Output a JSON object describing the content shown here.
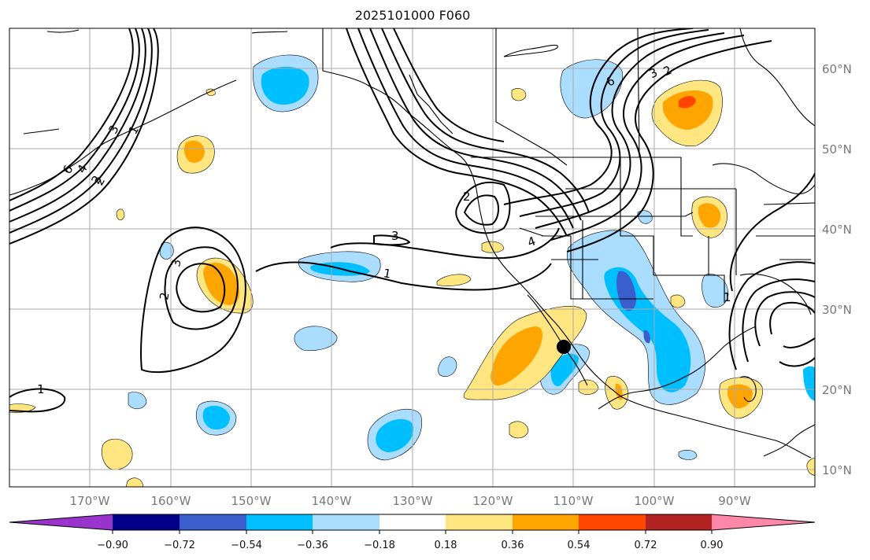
{
  "title": "2025101000 F060",
  "lat_labels": [
    "60°N",
    "50°N",
    "40°N",
    "30°N",
    "20°N",
    "10°N"
  ],
  "lon_labels": [
    "170°W",
    "160°W",
    "150°W",
    "140°W",
    "130°W",
    "120°W",
    "110°W",
    "100°W",
    "90°W"
  ],
  "colorbar": {
    "ticks": [
      "−0.90",
      "−0.72",
      "−0.54",
      "−0.36",
      "−0.18",
      "0.18",
      "0.36",
      "0.54",
      "0.72",
      "0.90"
    ],
    "colors": [
      "#9933cc",
      "#00008b",
      "#3a5fcd",
      "#00bfff",
      "#aaddff",
      "#ffffff",
      "#ffe680",
      "#ffa500",
      "#ff4500",
      "#b22222",
      "#ff88aa"
    ]
  },
  "contour_labels": [
    "1",
    "2",
    "3",
    "4",
    "6",
    "2",
    "3",
    "2",
    "1",
    "1",
    "2",
    "3",
    "4",
    "6",
    "3",
    "2",
    "1"
  ],
  "shade_colors": {
    "pos1": "#ffe680",
    "pos2": "#ffa500",
    "pos3": "#ff4500",
    "neg1": "#aaddff",
    "neg2": "#00bfff",
    "neg3": "#3a5fcd"
  }
}
